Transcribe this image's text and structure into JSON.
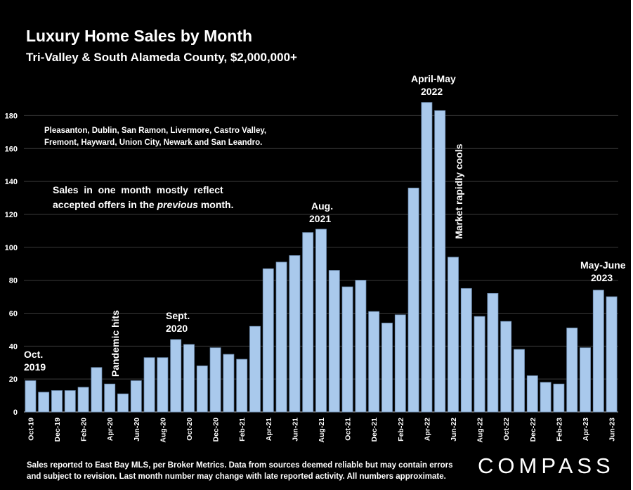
{
  "title": "Luxury Home Sales by Month",
  "subtitle": "Tri-Valley & South Alameda County, $2,000,000+",
  "footer": {
    "line1": "Sales reported to East Bay MLS, per Broker Metrics. Data from sources deemed reliable but may contain errors",
    "line2": "and subject to revision. Last month number may change with late reported activity. All numbers approximate."
  },
  "logo": "COMPASS",
  "colors": {
    "background": "#000000",
    "bar": "#a9c9ec",
    "bar_edge": "#6f8fb3",
    "text": "#ffffff"
  },
  "chart_data": {
    "type": "bar",
    "title": "Luxury Home Sales by Month",
    "subtitle": "Tri-Valley & South Alameda County, $2,000,000+",
    "ylim": [
      0,
      190
    ],
    "yticks": [
      0,
      20,
      40,
      60,
      80,
      100,
      120,
      140,
      160,
      180
    ],
    "grid": true,
    "categories": [
      "Oct-19",
      "Nov-19",
      "Dec-19",
      "Jan-20",
      "Feb-20",
      "Mar-20",
      "Apr-20",
      "May-20",
      "Jun-20",
      "Jul-20",
      "Aug-20",
      "Sep-20",
      "Oct-20",
      "Nov-20",
      "Dec-20",
      "Jan-21",
      "Feb-21",
      "Mar-21",
      "Apr-21",
      "May-21",
      "Jun-21",
      "Jul-21",
      "Aug-21",
      "Sep-21",
      "Oct-21",
      "Nov-21",
      "Dec-21",
      "Jan-22",
      "Feb-22",
      "Mar-22",
      "Apr-22",
      "May-22",
      "Jun-22",
      "Jul-22",
      "Aug-22",
      "Sep-22",
      "Oct-22",
      "Nov-22",
      "Dec-22",
      "Jan-23",
      "Feb-23",
      "Mar-23",
      "Apr-23",
      "May-23",
      "Jun-23"
    ],
    "x_tick_labels": [
      "Oct-19",
      "",
      "Dec-19",
      "",
      "Feb-20",
      "",
      "Apr-20",
      "",
      "Jun-20",
      "",
      "Aug-20",
      "",
      "Oct-20",
      "",
      "Dec-20",
      "",
      "Feb-21",
      "",
      "Apr-21",
      "",
      "Jun-21",
      "",
      "Aug-21",
      "",
      "Oct-21",
      "",
      "Dec-21",
      "",
      "Feb-22",
      "",
      "Apr-22",
      "",
      "Jun-22",
      "",
      "Aug-22",
      "",
      "Oct-22",
      "",
      "Dec-22",
      "",
      "Feb-23",
      "",
      "Apr-23",
      "",
      "Jun-23"
    ],
    "values": [
      19,
      12,
      13,
      13,
      15,
      27,
      17,
      11,
      19,
      33,
      33,
      44,
      41,
      28,
      39,
      35,
      32,
      52,
      87,
      91,
      95,
      109,
      111,
      86,
      76,
      80,
      61,
      54,
      59,
      136,
      188,
      183,
      94,
      75,
      58,
      72,
      55,
      38,
      22,
      18,
      17,
      51,
      39,
      74,
      70
    ],
    "annotations": {
      "oct2019": [
        "Oct.",
        "2019"
      ],
      "pandemic": "Pandemic hits",
      "sept2020": [
        "Sept.",
        "2020"
      ],
      "aug2021": [
        "Aug.",
        "2021"
      ],
      "aprilmay2022": [
        "April-May",
        "2022"
      ],
      "market": "Market rapidly cools",
      "mayjune2023": [
        "May-June",
        "2023"
      ],
      "cities": [
        "Pleasanton, Dublin, San Ramon, Livermore, Castro Valley,",
        "Fremont, Hayward, Union City, Newark and San Leandro."
      ],
      "note_line1": "Sales  in  one  month  mostly  reflect",
      "note_line2_a": "accepted offers in the ",
      "note_line2_b": "previous",
      "note_line2_c": " month."
    }
  }
}
